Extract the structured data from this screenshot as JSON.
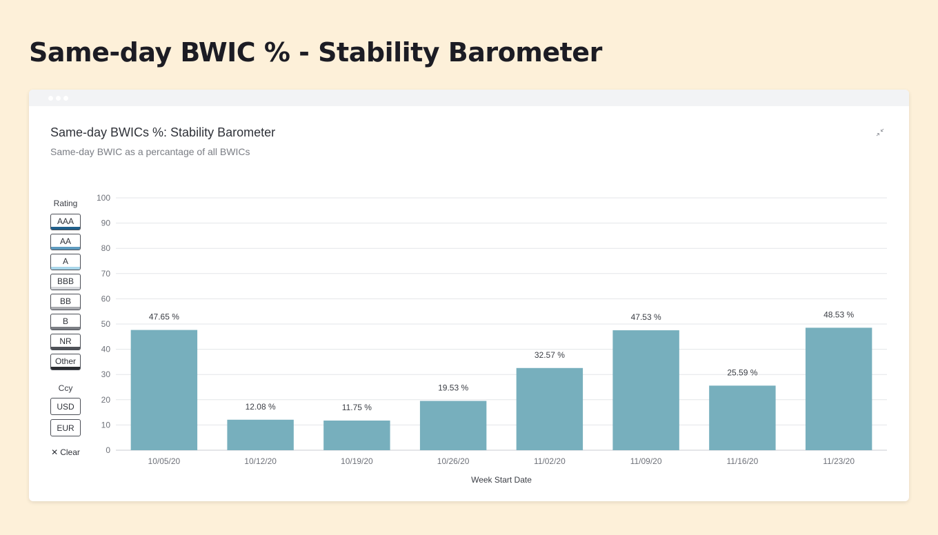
{
  "page_title": "Same-day BWIC % - Stability Barometer",
  "card": {
    "title": "Same-day BWICs %: Stability Barometer",
    "subtitle": "Same-day BWIC as a percantage of all BWICs"
  },
  "filters": {
    "rating_heading": "Rating",
    "ratings": [
      {
        "label": "AAA",
        "color": "#1f5f8b"
      },
      {
        "label": "AA",
        "color": "#5f9cc0"
      },
      {
        "label": "A",
        "color": "#a9d6ea"
      },
      {
        "label": "BBB",
        "color": "#d4d6da"
      },
      {
        "label": "BB",
        "color": "#a9abb0"
      },
      {
        "label": "B",
        "color": "#7c7f85"
      },
      {
        "label": "NR",
        "color": "#4f5258"
      },
      {
        "label": "Other",
        "color": "#2b2d31"
      }
    ],
    "ccy_heading": "Ccy",
    "currencies": [
      "USD",
      "EUR"
    ],
    "clear_label": "Clear"
  },
  "chart_data": {
    "type": "bar",
    "categories": [
      "10/05/20",
      "10/12/20",
      "10/19/20",
      "10/26/20",
      "11/02/20",
      "11/09/20",
      "11/16/20",
      "11/23/20"
    ],
    "values": [
      47.65,
      12.08,
      11.75,
      19.53,
      32.57,
      47.53,
      25.59,
      48.53
    ],
    "data_labels": [
      "47.65 %",
      "12.08 %",
      "11.75 %",
      "19.53 %",
      "32.57 %",
      "47.53 %",
      "25.59 %",
      "48.53 %"
    ],
    "xlabel": "Week Start Date",
    "ylabel": "",
    "ylim": [
      0,
      100
    ],
    "yticks": [
      0,
      10,
      20,
      30,
      40,
      50,
      60,
      70,
      80,
      90,
      100
    ],
    "grid": true,
    "bar_color": "#77afbd"
  }
}
